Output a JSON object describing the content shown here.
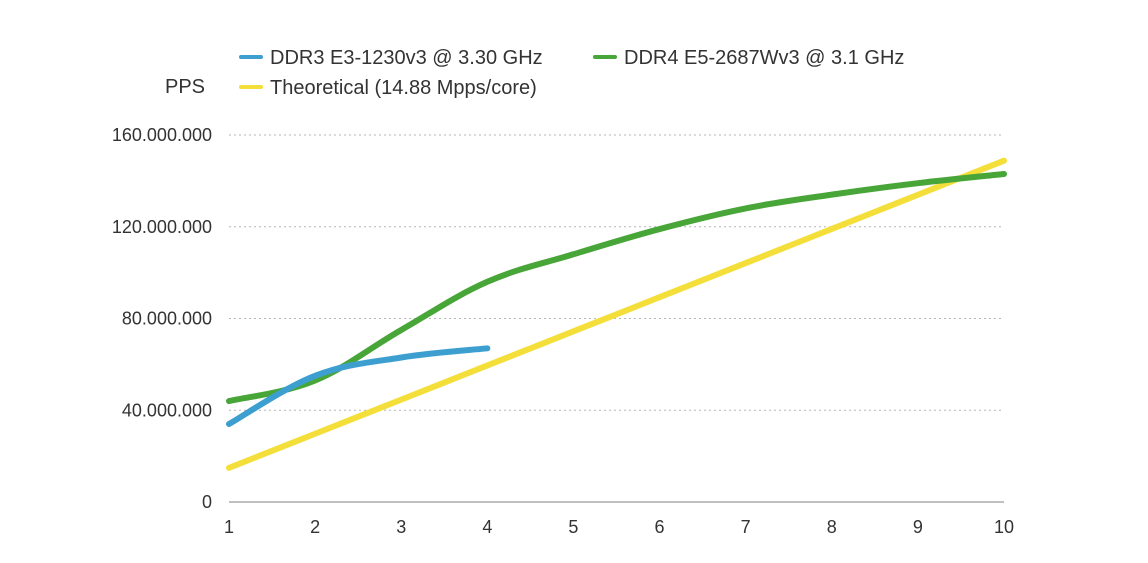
{
  "chart_data": {
    "type": "line",
    "title": "",
    "xlabel": "",
    "ylabel": "PPS",
    "x": [
      1,
      2,
      3,
      4,
      5,
      6,
      7,
      8,
      9,
      10
    ],
    "xlim": [
      1,
      10
    ],
    "ylim": [
      0,
      160000000
    ],
    "x_ticks": [
      "1",
      "2",
      "3",
      "4",
      "5",
      "6",
      "7",
      "8",
      "9",
      "10"
    ],
    "y_ticks": [
      0,
      40000000,
      80000000,
      120000000,
      160000000
    ],
    "y_tick_labels": [
      "0",
      "40.000.000",
      "80.000.000",
      "120.000.000",
      "160.000.000"
    ],
    "grid": "horizontal-dotted",
    "legend_position": "top",
    "series": [
      {
        "name": "DDR3 E3-1230v3 @ 3.30 GHz",
        "color": "#3d9fd0",
        "x": [
          1,
          2,
          3,
          4
        ],
        "values": [
          34000000,
          55000000,
          63000000,
          67000000
        ]
      },
      {
        "name": "DDR4 E5-2687Wv3 @ 3.1 GHz",
        "color": "#48a538",
        "x": [
          1,
          2,
          3,
          4,
          5,
          6,
          7,
          8,
          9,
          10
        ],
        "values": [
          44000000,
          53000000,
          75000000,
          96000000,
          108000000,
          119000000,
          128000000,
          134000000,
          139000000,
          143000000
        ]
      },
      {
        "name": "Theoretical (14.88 Mpps/core)",
        "color": "#f4df3a",
        "x": [
          1,
          2,
          3,
          4,
          5,
          6,
          7,
          8,
          9,
          10
        ],
        "values": [
          14880000,
          29760000,
          44640000,
          59520000,
          74400000,
          89280000,
          104160000,
          119040000,
          133920000,
          148800000
        ]
      }
    ]
  }
}
